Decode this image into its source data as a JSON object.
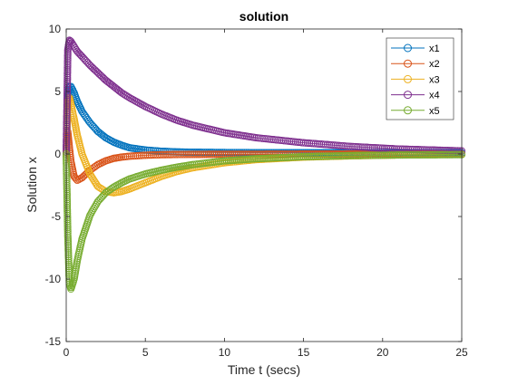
{
  "chart_data": {
    "type": "scatter",
    "title": "solution",
    "xlabel": "Time t (secs)",
    "ylabel": "Solution x",
    "xlim": [
      0,
      25
    ],
    "ylim": [
      -15,
      10
    ],
    "xticks": [
      "0",
      "5",
      "10",
      "15",
      "20",
      "25"
    ],
    "yticks": [
      "10",
      "5",
      "0",
      "-5",
      "-10",
      "-15"
    ],
    "grid": false,
    "legend_position": "top-right",
    "marker": "circle",
    "x": [
      0,
      0.1,
      0.2,
      0.3,
      0.5,
      0.7,
      1,
      1.5,
      2,
      2.5,
      3,
      3.5,
      4,
      5,
      6,
      7,
      8,
      10,
      12,
      15,
      18,
      21,
      25
    ],
    "series": [
      {
        "name": "x1",
        "color": "#0072BD",
        "values": [
          0,
          4.7,
          5.4,
          5.4,
          4.9,
          4.2,
          3.4,
          2.5,
          1.8,
          1.3,
          0.95,
          0.7,
          0.5,
          0.32,
          0.22,
          0.17,
          0.14,
          0.12,
          0.11,
          0.1,
          0.1,
          0.1,
          0.1
        ]
      },
      {
        "name": "x2",
        "color": "#D95319",
        "values": [
          0,
          1.8,
          0.5,
          -0.6,
          -1.8,
          -2.1,
          -1.9,
          -1.3,
          -0.85,
          -0.55,
          -0.35,
          -0.25,
          -0.18,
          -0.1,
          -0.06,
          -0.04,
          -0.03,
          -0.02,
          -0.02,
          -0.01,
          -0.01,
          0,
          0
        ]
      },
      {
        "name": "x3",
        "color": "#EDB120",
        "values": [
          0,
          4.2,
          4.5,
          4.0,
          2.8,
          1.5,
          0,
          -1.6,
          -2.6,
          -3.0,
          -3.1,
          -3.0,
          -2.8,
          -2.3,
          -1.8,
          -1.4,
          -1.1,
          -0.7,
          -0.45,
          -0.25,
          -0.15,
          -0.08,
          -0.03
        ]
      },
      {
        "name": "x4",
        "color": "#7E2F8E",
        "values": [
          0,
          8.3,
          9.1,
          9.0,
          8.6,
          8.2,
          7.8,
          7.1,
          6.5,
          5.9,
          5.4,
          4.9,
          4.5,
          3.8,
          3.2,
          2.7,
          2.3,
          1.7,
          1.3,
          0.9,
          0.6,
          0.4,
          0.25
        ]
      },
      {
        "name": "x5",
        "color": "#77AC30",
        "values": [
          0,
          -6.5,
          -10.4,
          -10.8,
          -10.0,
          -8.5,
          -6.8,
          -4.9,
          -3.8,
          -3.1,
          -2.65,
          -2.3,
          -2.0,
          -1.6,
          -1.3,
          -1.05,
          -0.85,
          -0.55,
          -0.38,
          -0.22,
          -0.13,
          -0.08,
          -0.05
        ]
      }
    ]
  }
}
